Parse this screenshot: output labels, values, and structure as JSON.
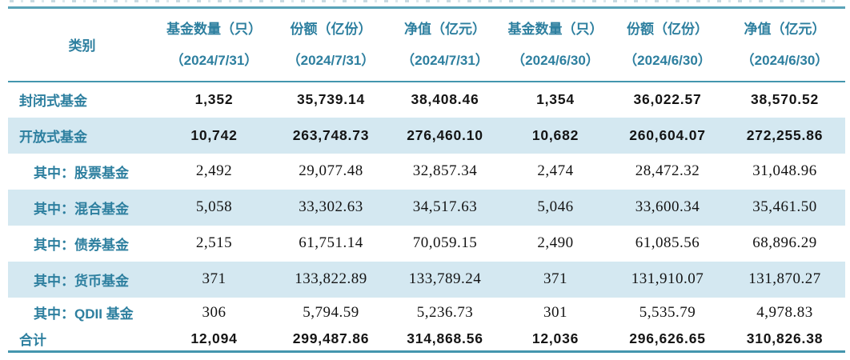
{
  "table": {
    "columns": [
      {
        "line1": "类别",
        "line2": ""
      },
      {
        "line1": "基金数量（只）",
        "line2": "（2024/7/31）"
      },
      {
        "line1": "份额（亿份）",
        "line2": "（2024/7/31）"
      },
      {
        "line1": "净值（亿元）",
        "line2": "（2024/7/31）"
      },
      {
        "line1": "基金数量（只）",
        "line2": "（2024/6/30）"
      },
      {
        "line1": "份额（亿份）",
        "line2": "（2024/6/30）"
      },
      {
        "line1": "净值（亿元）",
        "line2": "（2024/6/30）"
      }
    ],
    "rows": [
      {
        "category": "封闭式基金",
        "indent": false,
        "bold": true,
        "shaded": false,
        "values": [
          "1,352",
          "35,739.14",
          "38,408.46",
          "1,354",
          "36,022.57",
          "38,570.52"
        ]
      },
      {
        "category": "开放式基金",
        "indent": false,
        "bold": true,
        "shaded": true,
        "values": [
          "10,742",
          "263,748.73",
          "276,460.10",
          "10,682",
          "260,604.07",
          "272,255.86"
        ]
      },
      {
        "category": "其中：股票基金",
        "indent": true,
        "bold": false,
        "shaded": false,
        "values": [
          "2,492",
          "29,077.48",
          "32,857.34",
          "2,474",
          "28,472.32",
          "31,048.96"
        ]
      },
      {
        "category": "其中：混合基金",
        "indent": true,
        "bold": false,
        "shaded": true,
        "values": [
          "5,058",
          "33,302.63",
          "34,517.63",
          "5,046",
          "33,600.34",
          "35,461.50"
        ]
      },
      {
        "category": "其中：债券基金",
        "indent": true,
        "bold": false,
        "shaded": false,
        "values": [
          "2,515",
          "61,751.14",
          "70,059.15",
          "2,490",
          "61,085.56",
          "68,896.29"
        ]
      },
      {
        "category": "其中：货币基金",
        "indent": true,
        "bold": false,
        "shaded": true,
        "values": [
          "371",
          "133,822.89",
          "133,789.24",
          "371",
          "131,910.07",
          "131,870.27"
        ]
      },
      {
        "category": "其中：QDII 基金",
        "indent": true,
        "bold": false,
        "shaded": false,
        "values": [
          "306",
          "5,794.59",
          "5,236.73",
          "301",
          "5,535.79",
          "4,978.83"
        ]
      },
      {
        "category": "合计",
        "indent": false,
        "bold": true,
        "shaded": false,
        "values": [
          "12,094",
          "299,487.86",
          "314,868.56",
          "12,036",
          "296,626.65",
          "310,826.38"
        ]
      }
    ],
    "colors": {
      "header_text": "#2d7f9f",
      "category_text": "#2d7f9f",
      "shaded_row_bg": "#d4e8f1",
      "rule_teal": "#4496ae",
      "number_text": "#141414"
    }
  }
}
